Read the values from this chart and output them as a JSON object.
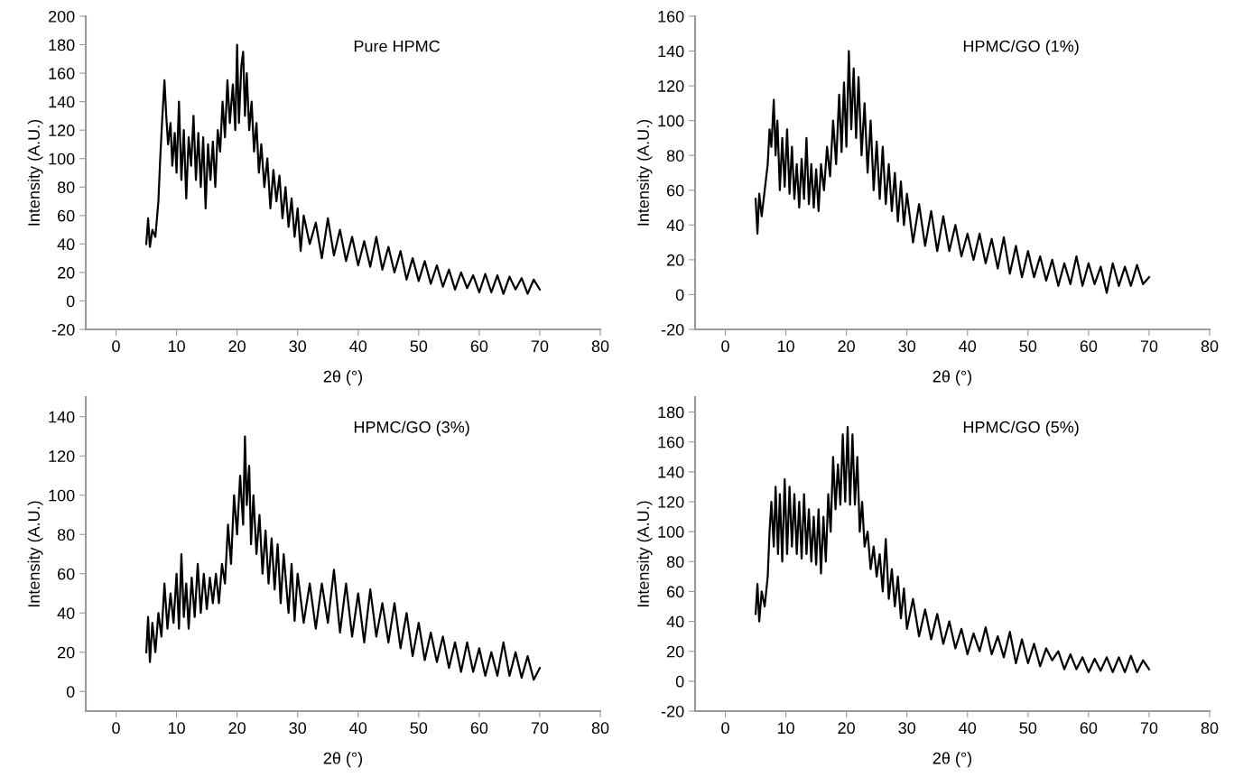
{
  "chart_data": [
    {
      "type": "line",
      "annotations": [
        "Pure HPMC"
      ],
      "xlabel": "2θ (°)",
      "ylabel": "Intensity (A.U.)",
      "xlim": [
        -5,
        80
      ],
      "xticks": [
        0,
        10,
        20,
        30,
        40,
        50,
        60,
        70,
        80
      ],
      "ylim": [
        -20,
        200
      ],
      "yticks": [
        -20,
        0,
        20,
        40,
        60,
        80,
        100,
        120,
        140,
        160,
        180,
        200
      ],
      "grid": false,
      "marker": "none",
      "line_style": "solid",
      "series": [
        {
          "color": "#000000",
          "x": [
            5,
            5.3,
            5.6,
            6,
            6.5,
            7,
            7.3,
            7.6,
            8,
            8.3,
            8.6,
            9,
            9.3,
            9.7,
            10,
            10.4,
            10.8,
            11.2,
            11.6,
            12,
            12.4,
            12.8,
            13.2,
            13.6,
            14,
            14.4,
            14.8,
            15.2,
            15.6,
            16,
            16.4,
            16.8,
            17.2,
            17.6,
            18,
            18.4,
            18.8,
            19.3,
            19.7,
            20,
            20.3,
            20.7,
            21,
            21.3,
            21.6,
            22,
            22.4,
            22.8,
            23.2,
            23.6,
            24,
            24.5,
            25,
            25.5,
            26,
            26.5,
            27,
            27.5,
            28,
            28.5,
            29,
            29.5,
            30,
            30.5,
            31,
            32,
            33,
            34,
            35,
            36,
            37,
            38,
            39,
            40,
            41,
            42,
            43,
            44,
            45,
            46,
            47,
            48,
            49,
            50,
            51,
            52,
            53,
            54,
            55,
            56,
            57,
            58,
            59,
            60,
            61,
            62,
            63,
            64,
            65,
            66,
            67,
            68,
            69,
            70
          ],
          "values": [
            40,
            58,
            38,
            50,
            45,
            70,
            100,
            125,
            155,
            130,
            110,
            125,
            95,
            118,
            90,
            140,
            85,
            120,
            72,
            115,
            95,
            130,
            85,
            118,
            80,
            115,
            65,
            110,
            85,
            112,
            80,
            120,
            105,
            140,
            115,
            155,
            125,
            152,
            120,
            180,
            125,
            165,
            175,
            130,
            160,
            120,
            140,
            105,
            125,
            90,
            110,
            80,
            100,
            65,
            92,
            70,
            88,
            58,
            80,
            52,
            72,
            45,
            65,
            35,
            60,
            40,
            55,
            30,
            58,
            32,
            50,
            28,
            45,
            25,
            42,
            24,
            45,
            22,
            38,
            20,
            35,
            15,
            30,
            14,
            28,
            12,
            25,
            10,
            22,
            8,
            20,
            9,
            18,
            6,
            19,
            6,
            18,
            5,
            17,
            8,
            16,
            5,
            15,
            8
          ]
        }
      ]
    },
    {
      "type": "line",
      "annotations": [
        "HPMC/GO (1%)"
      ],
      "xlabel": "2θ (°)",
      "ylabel": "Intensity (A.U.)",
      "xlim": [
        -5,
        80
      ],
      "xticks": [
        0,
        10,
        20,
        30,
        40,
        50,
        60,
        70,
        80
      ],
      "ylim": [
        -20,
        160
      ],
      "yticks": [
        -20,
        0,
        20,
        40,
        60,
        80,
        100,
        120,
        140,
        160
      ],
      "grid": false,
      "marker": "none",
      "line_style": "solid",
      "series": [
        {
          "color": "#000000",
          "x": [
            5,
            5.3,
            5.6,
            6,
            6.5,
            7,
            7.3,
            7.6,
            8,
            8.3,
            8.6,
            9,
            9.4,
            9.8,
            10.2,
            10.6,
            11,
            11.4,
            11.8,
            12.2,
            12.6,
            13,
            13.4,
            13.8,
            14.2,
            14.6,
            15,
            15.4,
            15.8,
            16.3,
            16.8,
            17.3,
            17.8,
            18.3,
            18.8,
            19.2,
            19.6,
            20,
            20.4,
            20.8,
            21.2,
            21.6,
            22,
            22.5,
            23,
            23.5,
            24,
            24.5,
            25,
            25.5,
            26,
            26.5,
            27,
            27.5,
            28,
            28.5,
            29,
            29.5,
            30,
            31,
            32,
            33,
            34,
            35,
            36,
            37,
            38,
            39,
            40,
            41,
            42,
            43,
            44,
            45,
            46,
            47,
            48,
            49,
            50,
            51,
            52,
            53,
            54,
            55,
            56,
            57,
            58,
            59,
            60,
            61,
            62,
            63,
            64,
            65,
            66,
            67,
            68,
            69,
            70
          ],
          "values": [
            55,
            35,
            58,
            45,
            60,
            75,
            95,
            85,
            112,
            80,
            100,
            60,
            90,
            62,
            95,
            58,
            85,
            55,
            75,
            50,
            78,
            55,
            90,
            52,
            75,
            50,
            72,
            48,
            75,
            60,
            85,
            68,
            100,
            75,
            115,
            82,
            122,
            85,
            140,
            95,
            130,
            90,
            125,
            80,
            110,
            70,
            100,
            60,
            88,
            55,
            85,
            52,
            75,
            48,
            70,
            42,
            65,
            40,
            58,
            30,
            52,
            28,
            48,
            25,
            45,
            25,
            40,
            22,
            35,
            20,
            35,
            18,
            32,
            15,
            33,
            12,
            28,
            10,
            25,
            10,
            22,
            8,
            20,
            5,
            18,
            6,
            22,
            5,
            18,
            6,
            16,
            1,
            18,
            5,
            16,
            5,
            17,
            6,
            10
          ]
        }
      ]
    },
    {
      "type": "line",
      "annotations": [
        "HPMC/GO (3%)"
      ],
      "xlabel": "2θ (°)",
      "ylabel": "Intensity (A.U.)",
      "xlim": [
        -5,
        80
      ],
      "xticks": [
        0,
        10,
        20,
        30,
        40,
        50,
        60,
        70,
        80
      ],
      "ylim": [
        -10,
        150
      ],
      "yticks": [
        0,
        20,
        40,
        60,
        80,
        100,
        120,
        140
      ],
      "grid": false,
      "marker": "none",
      "line_style": "solid",
      "series": [
        {
          "color": "#000000",
          "x": [
            5,
            5.3,
            5.6,
            6,
            6.5,
            7,
            7.5,
            8,
            8.5,
            9,
            9.5,
            10,
            10.4,
            10.8,
            11.2,
            11.6,
            12,
            12.5,
            13,
            13.5,
            14,
            14.5,
            15,
            15.5,
            16,
            16.5,
            17,
            17.5,
            18,
            18.5,
            19,
            19.5,
            20,
            20.5,
            21,
            21.3,
            21.6,
            22,
            22.3,
            22.7,
            23.2,
            23.7,
            24.2,
            24.7,
            25.2,
            25.7,
            26.2,
            26.7,
            27.2,
            27.7,
            28.5,
            29,
            29.5,
            30,
            31,
            32,
            33,
            34,
            35,
            36,
            37,
            38,
            39,
            40,
            41,
            42,
            43,
            44,
            45,
            46,
            47,
            48,
            49,
            50,
            51,
            52,
            53,
            54,
            55,
            56,
            57,
            58,
            59,
            60,
            61,
            62,
            63,
            64,
            65,
            66,
            67,
            68,
            69,
            70
          ],
          "values": [
            20,
            38,
            15,
            35,
            20,
            40,
            28,
            55,
            32,
            50,
            35,
            60,
            32,
            70,
            38,
            55,
            32,
            58,
            38,
            65,
            40,
            60,
            42,
            58,
            45,
            60,
            45,
            65,
            55,
            85,
            65,
            100,
            80,
            110,
            85,
            130,
            95,
            115,
            75,
            100,
            70,
            90,
            60,
            82,
            55,
            78,
            52,
            75,
            45,
            70,
            40,
            65,
            36,
            60,
            35,
            55,
            32,
            55,
            35,
            62,
            30,
            55,
            28,
            50,
            25,
            52,
            28,
            45,
            25,
            45,
            22,
            40,
            18,
            35,
            16,
            30,
            15,
            28,
            12,
            25,
            10,
            25,
            10,
            22,
            8,
            20,
            8,
            25,
            8,
            20,
            7,
            18,
            6,
            12
          ]
        }
      ]
    },
    {
      "type": "line",
      "annotations": [
        "HPMC/GO (5%)"
      ],
      "xlabel": "2θ (°)",
      "ylabel": "Intensity (A.U.)",
      "xlim": [
        -5,
        80
      ],
      "xticks": [
        0,
        10,
        20,
        30,
        40,
        50,
        60,
        70,
        80
      ],
      "ylim": [
        -20,
        190
      ],
      "yticks": [
        -20,
        0,
        20,
        40,
        60,
        80,
        100,
        120,
        140,
        160,
        180
      ],
      "grid": false,
      "marker": "none",
      "line_style": "solid",
      "series": [
        {
          "color": "#000000",
          "x": [
            5,
            5.3,
            5.6,
            6,
            6.5,
            7,
            7.3,
            7.6,
            8,
            8.3,
            8.7,
            9,
            9.4,
            9.8,
            10.2,
            10.6,
            11,
            11.4,
            11.8,
            12.2,
            12.6,
            13,
            13.4,
            13.8,
            14.2,
            14.6,
            15,
            15.4,
            15.8,
            16.2,
            16.6,
            17,
            17.4,
            17.8,
            18.2,
            18.6,
            19,
            19.4,
            19.8,
            20.2,
            20.6,
            21,
            21.4,
            21.8,
            22.2,
            22.6,
            23,
            23.5,
            24,
            24.5,
            25,
            25.5,
            26,
            26.5,
            27,
            27.5,
            28,
            28.5,
            29,
            29.5,
            30,
            31,
            32,
            33,
            34,
            35,
            36,
            37,
            38,
            39,
            40,
            41,
            42,
            43,
            44,
            45,
            46,
            47,
            48,
            49,
            50,
            51,
            52,
            53,
            54,
            55,
            56,
            57,
            58,
            59,
            60,
            61,
            62,
            63,
            64,
            65,
            66,
            67,
            68,
            69,
            70
          ],
          "values": [
            45,
            65,
            40,
            60,
            50,
            70,
            100,
            120,
            90,
            130,
            85,
            125,
            80,
            135,
            85,
            130,
            90,
            125,
            85,
            120,
            82,
            125,
            85,
            115,
            80,
            110,
            78,
            115,
            72,
            110,
            80,
            125,
            100,
            150,
            115,
            145,
            118,
            165,
            120,
            170,
            118,
            165,
            118,
            150,
            100,
            120,
            90,
            100,
            75,
            90,
            70,
            85,
            60,
            95,
            55,
            75,
            50,
            70,
            42,
            62,
            35,
            55,
            30,
            48,
            28,
            45,
            25,
            40,
            22,
            35,
            18,
            32,
            20,
            36,
            18,
            30,
            16,
            33,
            12,
            28,
            12,
            25,
            10,
            22,
            14,
            20,
            8,
            18,
            8,
            16,
            6,
            15,
            7,
            16,
            6,
            16,
            6,
            17,
            6,
            14,
            8
          ]
        }
      ]
    }
  ]
}
